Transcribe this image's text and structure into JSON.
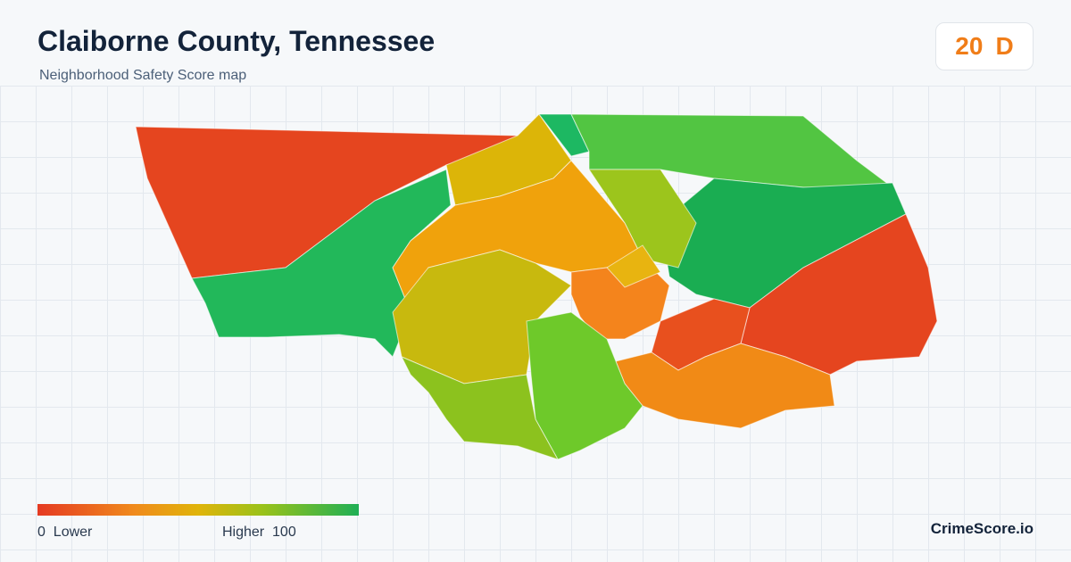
{
  "header": {
    "title": "Claiborne County, Tennessee",
    "subtitle": "Neighborhood Safety Score map"
  },
  "score": {
    "value": 20,
    "grade": "D"
  },
  "legend": {
    "min": 0,
    "min_label": "Lower",
    "max_label": "Higher",
    "max": 100
  },
  "brand": "CrimeScore.io"
}
